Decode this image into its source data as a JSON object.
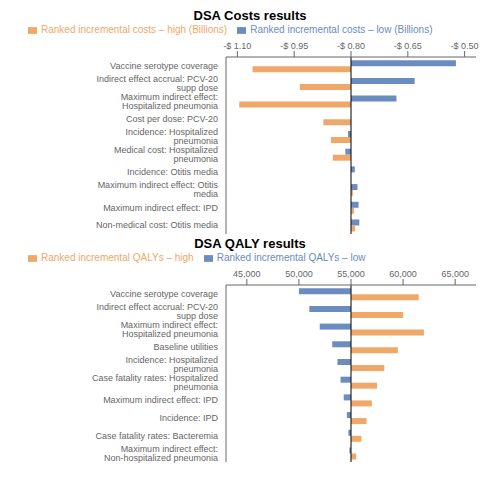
{
  "chart_data": [
    {
      "type": "bar",
      "orientation": "horizontal",
      "title": "DSA Costs results",
      "categories": [
        "Vaccine serotype coverage",
        "Indirect effect accrual: PCV-20 supp dose",
        "Maximum indirect effect: Hospitalized pneumonia",
        "Cost per dose: PCV-20",
        "Incidence: Hospitalized pneumonia",
        "Medical cost: Hospitalized pneumonia",
        "Incidence: Otitis media",
        "Maximum indirect effect: Otitis media",
        "Maximum indirect effect: IPD",
        "Non-medical cost: Otitis media"
      ],
      "series": [
        {
          "name": "Ranked incremental costs – low (Billions)",
          "color": "#6b8cbe",
          "values": [
            -0.523,
            -0.632,
            -0.68,
            -0.8,
            -0.808,
            -0.815,
            -0.79,
            -0.783,
            -0.78,
            -0.778
          ]
        },
        {
          "name": "Ranked incremental costs – high (Billions)",
          "color": "#f0a868",
          "values": [
            -1.06,
            -0.935,
            -1.095,
            -0.873,
            -0.853,
            -0.848,
            -0.8,
            -0.795,
            -0.792,
            -0.789
          ]
        }
      ],
      "baseline": -0.8,
      "xlim": [
        -1.13,
        -0.47
      ],
      "xticks": [
        {
          "value": -1.1,
          "label": "-$ 1.10"
        },
        {
          "value": -0.95,
          "label": "-$ 0.95"
        },
        {
          "value": -0.8,
          "label": "-$ 0.80"
        },
        {
          "value": -0.65,
          "label": "-$ 0.65"
        },
        {
          "value": -0.5,
          "label": "-$ 0.50"
        }
      ],
      "legend": "upper left",
      "grid": false
    },
    {
      "type": "bar",
      "orientation": "horizontal",
      "title": "DSA QALY results",
      "categories": [
        "Vaccine serotype coverage",
        "Indirect effect accrual: PCV-20 supp dose",
        "Maximum indirect effect: Hospitalized pneumonia",
        "Baseline utilities",
        "Incidence: Hospitalized pneumonia",
        "Case fatality rates: Hospitalized pneumonia",
        "Maximum indirect effect: IPD",
        "Incidence: IPD",
        "Case fatality rates: Bacteremia",
        "Maximum indirect effect: Non-hospitalized pneumonia"
      ],
      "series": [
        {
          "name": "Ranked incremental QALYs – low",
          "color": "#6b8cbe",
          "values": [
            50000,
            51000,
            52000,
            53200,
            53700,
            54000,
            54300,
            54600,
            54750,
            54850
          ]
        },
        {
          "name": "Ranked incremental QALYs – high",
          "color": "#f0a868",
          "values": [
            61500,
            60000,
            62000,
            59500,
            58200,
            57500,
            57000,
            56500,
            56000,
            55500
          ]
        }
      ],
      "baseline": 55000,
      "xlim": [
        43000,
        67000
      ],
      "xticks": [
        {
          "value": 45000,
          "label": "45,000"
        },
        {
          "value": 50000,
          "label": "50,000"
        },
        {
          "value": 55000,
          "label": "55,000"
        },
        {
          "value": 60000,
          "label": "60,000"
        },
        {
          "value": 65000,
          "label": "65,000"
        }
      ],
      "legend": "upper left",
      "grid": false
    }
  ]
}
